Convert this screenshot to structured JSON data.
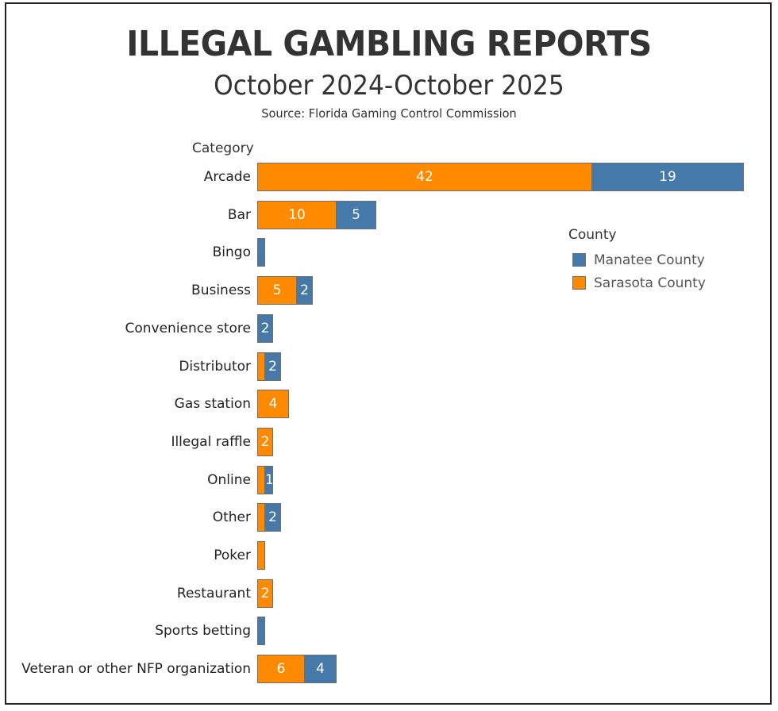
{
  "header": {
    "title": "ILLEGAL GAMBLING REPORTS",
    "subtitle": "October 2024-October 2025",
    "source": "Source: Florida Gaming Control Commission"
  },
  "axis_header": "Category",
  "legend": {
    "title": "County",
    "items": [
      {
        "label": "Manatee County",
        "color": "#4479AA"
      },
      {
        "label": "Sarasota County",
        "color": "#FF8A00"
      }
    ]
  },
  "colors": {
    "sarasota": "#FF8A00",
    "manatee": "#4479AA",
    "text": "#333333",
    "bar_border": "#6f6f6f"
  },
  "chart_data": {
    "type": "bar",
    "orientation": "horizontal",
    "stacked": true,
    "title": "ILLEGAL GAMBLING REPORTS",
    "subtitle": "October 2024-October 2025",
    "source": "Source: Florida Gaming Control Commission",
    "xlabel": "",
    "ylabel": "Category",
    "grid": false,
    "legend_position": "right",
    "legend_title": "County",
    "categories": [
      "Arcade",
      "Bar",
      "Bingo",
      "Business",
      "Convenience store",
      "Distributor",
      "Gas station",
      "Illegal raffle",
      "Online",
      "Other",
      "Poker",
      "Restaurant",
      "Sports betting",
      "Veteran or other NFP organization"
    ],
    "series": [
      {
        "name": "Sarasota County",
        "color": "#FF8A00",
        "values": [
          42,
          10,
          0,
          5,
          0,
          1,
          4,
          2,
          1,
          1,
          1,
          2,
          0,
          6
        ]
      },
      {
        "name": "Manatee County",
        "color": "#4479AA",
        "values": [
          19,
          5,
          1,
          2,
          2,
          2,
          0,
          0,
          1,
          2,
          0,
          0,
          1,
          4
        ]
      }
    ],
    "data_labels": {
      "Sarasota County": [
        "42",
        "10",
        "",
        "5",
        "",
        "",
        "4",
        "2",
        "",
        "",
        "",
        "2",
        "",
        "6"
      ],
      "Manatee County": [
        "19",
        "5",
        "",
        "2",
        "2",
        "2",
        "",
        "",
        "1",
        "2",
        "",
        "",
        "",
        "4"
      ]
    },
    "xlim": [
      0,
      61
    ]
  },
  "rows": [
    {
      "label": "Arcade",
      "segments": [
        {
          "county": "sarasota",
          "value": 42,
          "text": "42"
        },
        {
          "county": "manatee",
          "value": 19,
          "text": "19"
        }
      ]
    },
    {
      "label": "Bar",
      "segments": [
        {
          "county": "sarasota",
          "value": 10,
          "text": "10"
        },
        {
          "county": "manatee",
          "value": 5,
          "text": "5"
        }
      ]
    },
    {
      "label": "Bingo",
      "segments": [
        {
          "county": "manatee",
          "value": 1,
          "text": ""
        }
      ]
    },
    {
      "label": "Business",
      "segments": [
        {
          "county": "sarasota",
          "value": 5,
          "text": "5"
        },
        {
          "county": "manatee",
          "value": 2,
          "text": "2"
        }
      ]
    },
    {
      "label": "Convenience store",
      "segments": [
        {
          "county": "manatee",
          "value": 2,
          "text": "2"
        }
      ]
    },
    {
      "label": "Distributor",
      "segments": [
        {
          "county": "sarasota",
          "value": 1,
          "text": ""
        },
        {
          "county": "manatee",
          "value": 2,
          "text": "2"
        }
      ]
    },
    {
      "label": "Gas station",
      "segments": [
        {
          "county": "sarasota",
          "value": 4,
          "text": "4"
        }
      ]
    },
    {
      "label": "Illegal raffle",
      "segments": [
        {
          "county": "sarasota",
          "value": 2,
          "text": "2"
        }
      ]
    },
    {
      "label": "Online",
      "segments": [
        {
          "county": "sarasota",
          "value": 1,
          "text": ""
        },
        {
          "county": "manatee",
          "value": 1,
          "text": "1"
        }
      ]
    },
    {
      "label": "Other",
      "segments": [
        {
          "county": "sarasota",
          "value": 1,
          "text": ""
        },
        {
          "county": "manatee",
          "value": 2,
          "text": "2"
        }
      ]
    },
    {
      "label": "Poker",
      "segments": [
        {
          "county": "sarasota",
          "value": 1,
          "text": ""
        }
      ]
    },
    {
      "label": "Restaurant",
      "segments": [
        {
          "county": "sarasota",
          "value": 2,
          "text": "2"
        }
      ]
    },
    {
      "label": "Sports betting",
      "segments": [
        {
          "county": "manatee",
          "value": 1,
          "text": ""
        }
      ]
    },
    {
      "label": "Veteran or other NFP organization",
      "segments": [
        {
          "county": "sarasota",
          "value": 6,
          "text": "6"
        },
        {
          "county": "manatee",
          "value": 4,
          "text": "4"
        }
      ]
    }
  ]
}
